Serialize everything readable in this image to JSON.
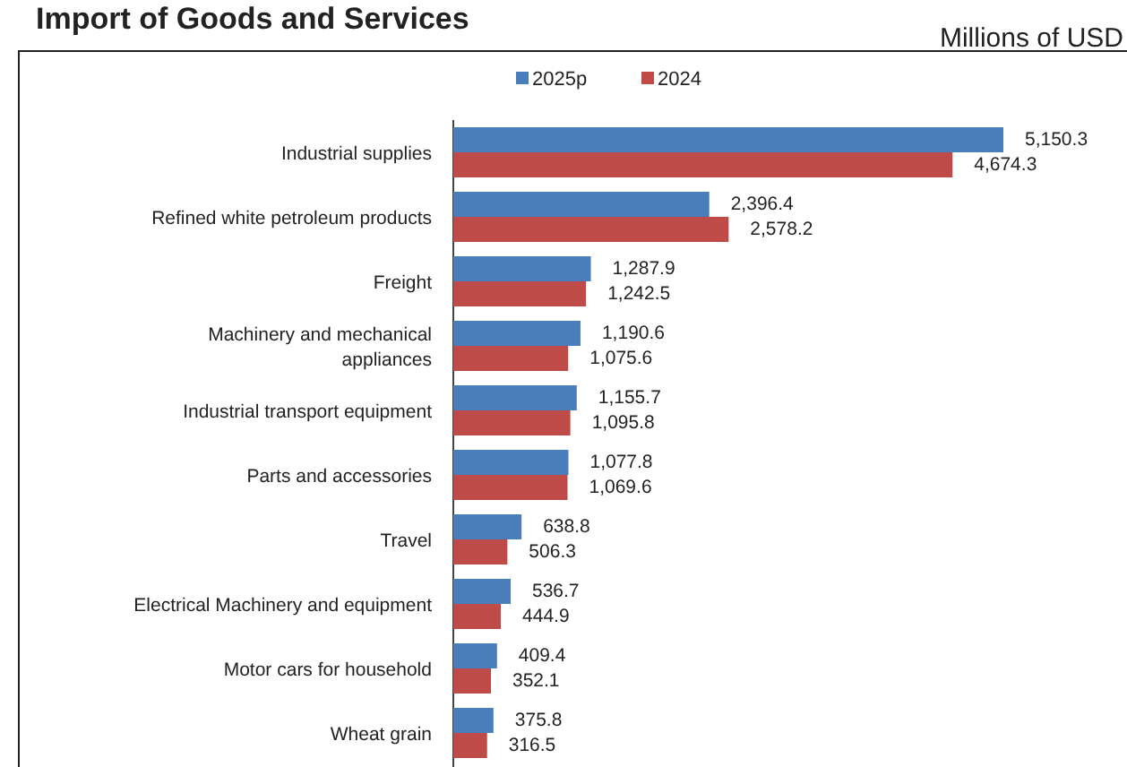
{
  "chart_data": {
    "type": "bar",
    "orientation": "horizontal",
    "title": "Import of Goods and Services",
    "subtitle": "Millions of USD",
    "categories": [
      "Industrial supplies",
      "Refined white petroleum products",
      "Freight",
      "Machinery and mechanical appliances",
      "Industrial transport equipment",
      "Parts and accessories",
      "Travel",
      "Electrical Machinery and equipment",
      "Motor cars for household",
      "Wheat grain"
    ],
    "series": [
      {
        "name": "2025p",
        "color": "#4a7ebb",
        "values": [
          5150.3,
          2396.4,
          1287.9,
          1190.6,
          1155.7,
          1077.8,
          638.8,
          536.7,
          409.4,
          375.8
        ],
        "value_labels": [
          "5,150.3",
          "2,396.4",
          "1,287.9",
          "1,190.6",
          "1,155.7",
          "1,077.8",
          "638.8",
          "536.7",
          "409.4",
          "375.8"
        ]
      },
      {
        "name": "2024",
        "color": "#be4b48",
        "values": [
          4674.3,
          2578.2,
          1242.5,
          1075.6,
          1095.8,
          1069.6,
          506.3,
          444.9,
          352.1,
          316.5
        ],
        "value_labels": [
          "4,674.3",
          "2,578.2",
          "1,242.5",
          "1,075.6",
          "1,095.8",
          "1,069.6",
          "506.3",
          "444.9",
          "352.1",
          "316.5"
        ]
      }
    ],
    "legend": "top",
    "tick_labels": "y"
  }
}
